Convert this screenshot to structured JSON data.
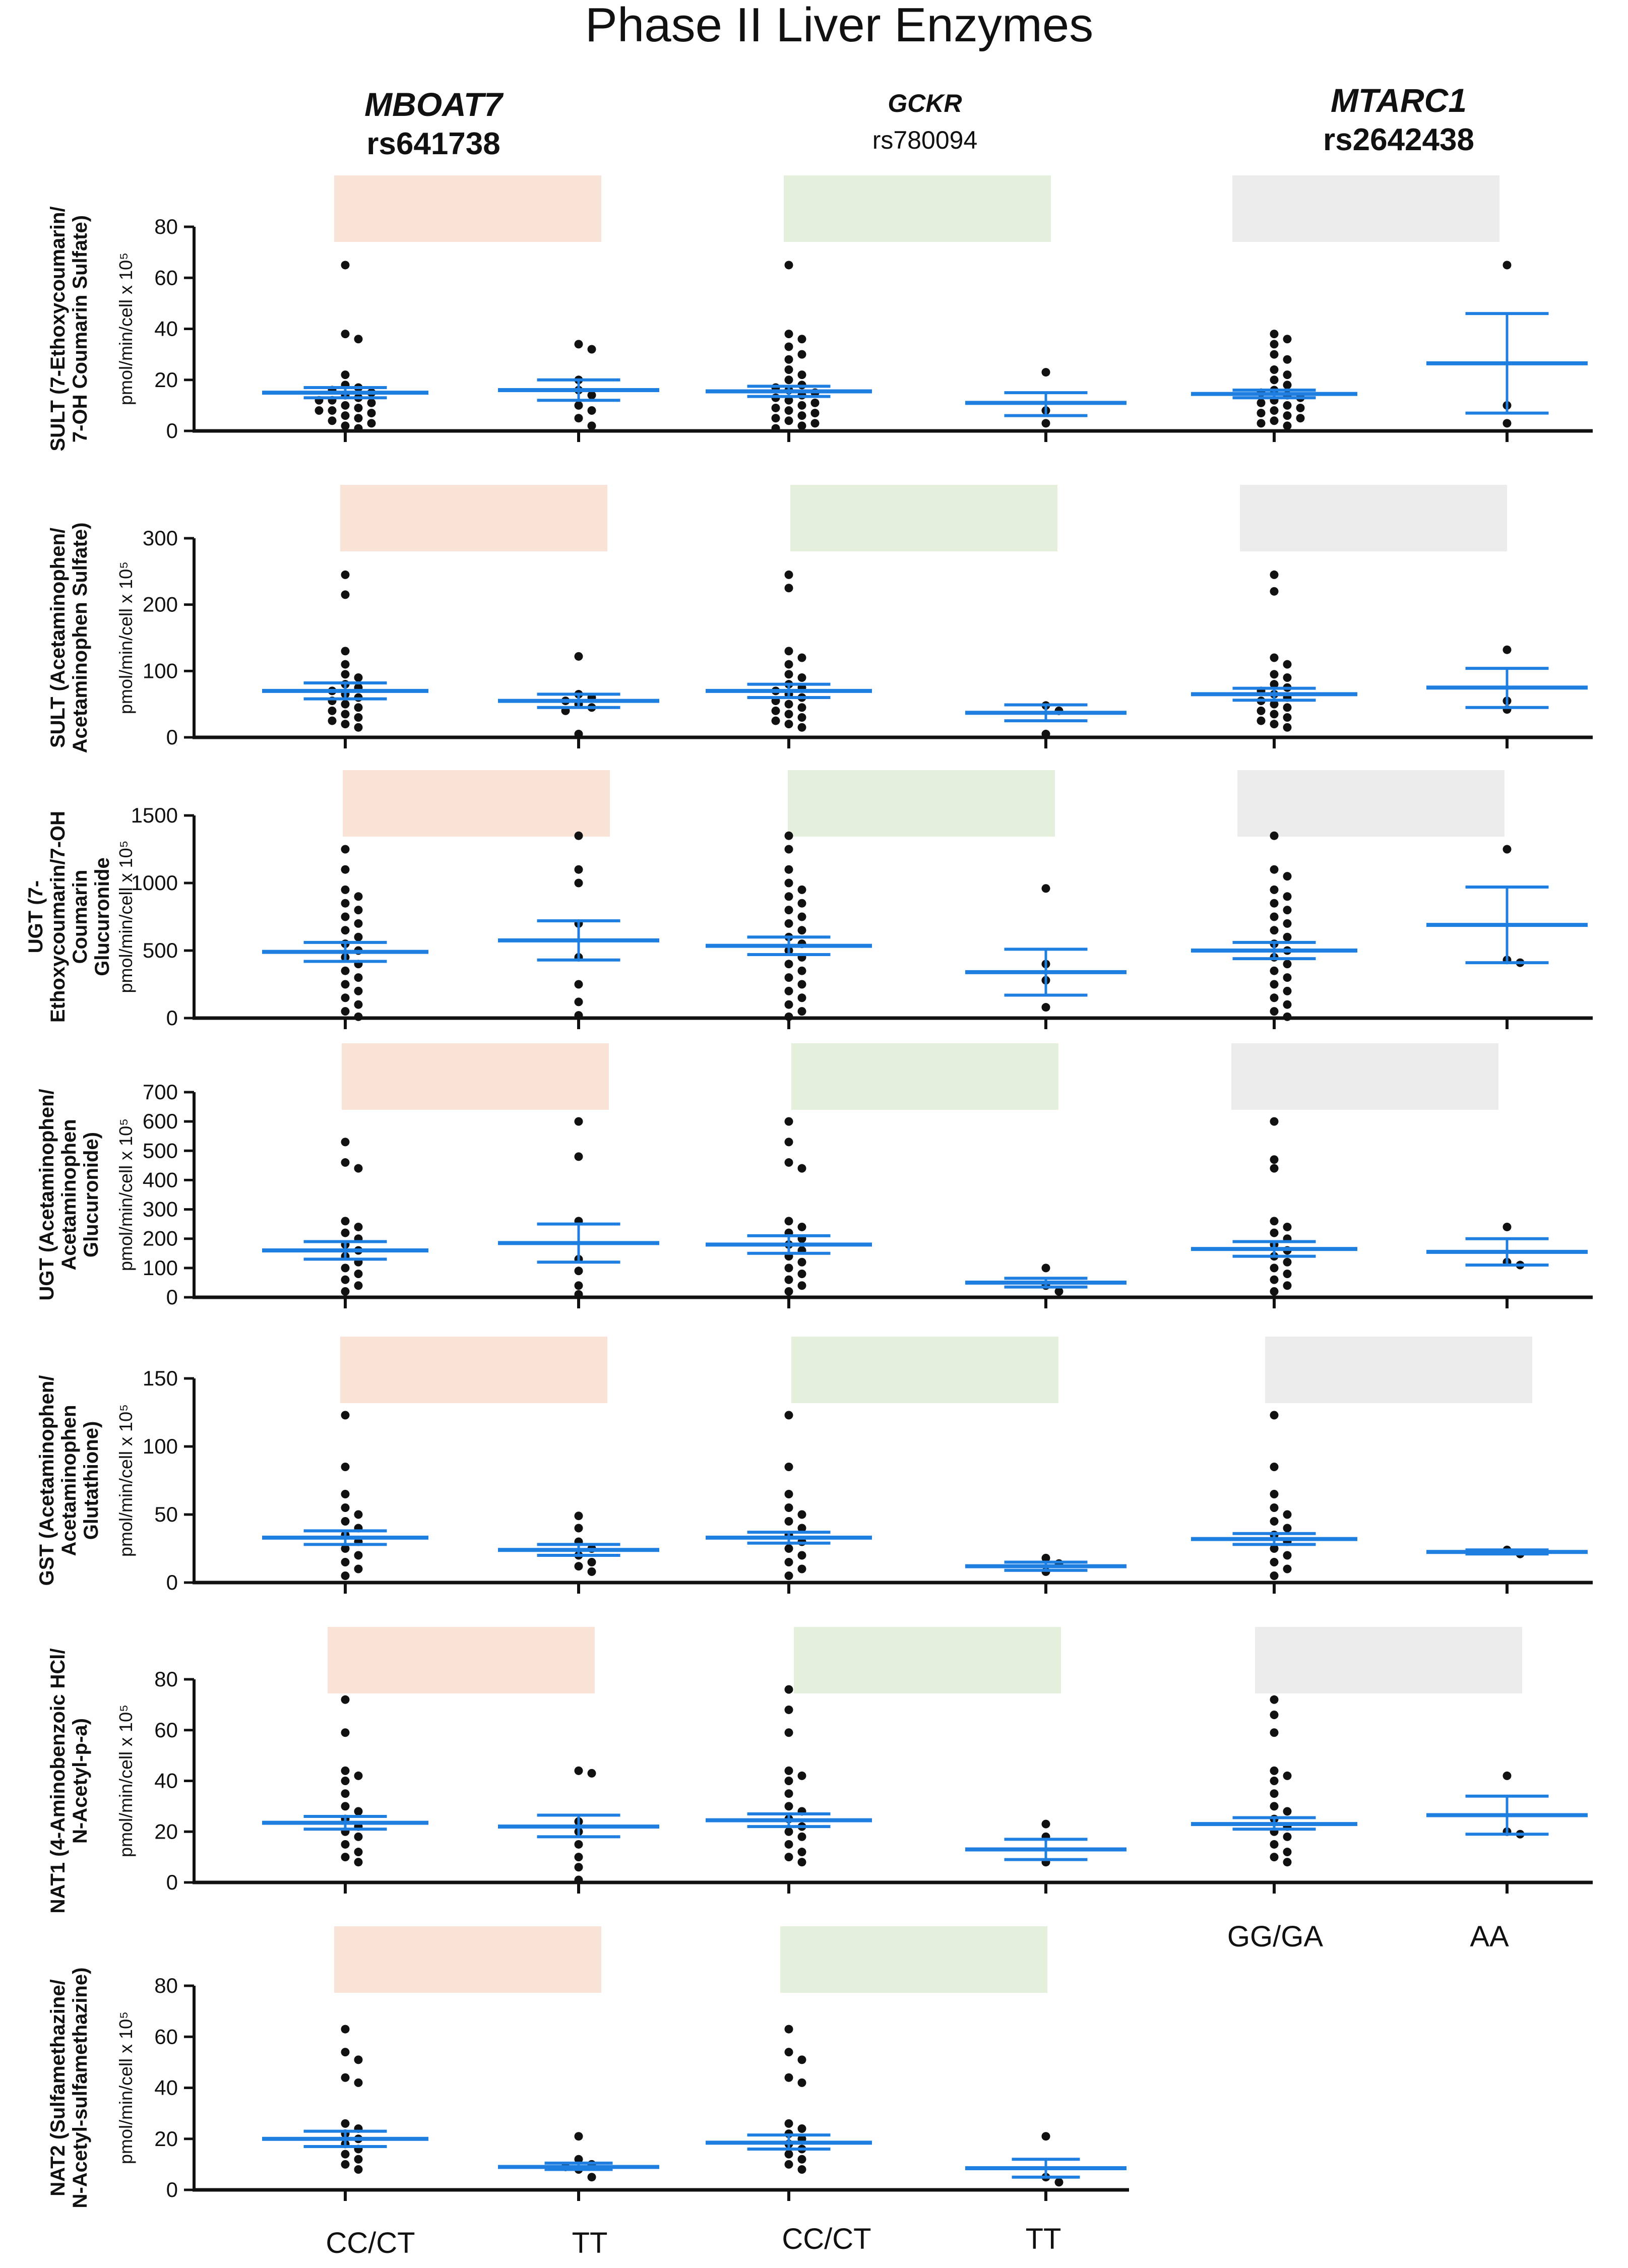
{
  "chart_data": {
    "type": "scatter",
    "title": "Phase II Liver Enzymes",
    "genes": [
      {
        "gene": "MBOAT7",
        "snp": "rs641738",
        "categories": [
          "CC/CT",
          "TT"
        ],
        "color": "#f9e3d6"
      },
      {
        "gene": "GCKR",
        "snp": "rs780094",
        "categories": [
          "CC/CT",
          "TT"
        ],
        "color": "#e5f0dc"
      },
      {
        "gene": "MTARC1",
        "snp": "rs2642438",
        "categories": [
          "GG/GA",
          "AA"
        ],
        "color": "#ececec"
      }
    ],
    "category_labels": {
      "gene1_a": "CC/CT",
      "gene1_b": "TT",
      "gene2_a": "CC/CT",
      "gene2_b": "TT",
      "gene3_a": "GG/GA",
      "gene3_b": "AA"
    },
    "unit": "pmol/min/cell x 10⁵",
    "point_color": "#111111",
    "mean_color": "#1f7fe0",
    "panels": [
      {
        "ylabel": [
          "SULT (7-Ethoxycoumarin/",
          "7-OH Coumarin Sulfate)"
        ],
        "ylim": [
          0,
          80
        ],
        "yticks": [
          0,
          20,
          40,
          60,
          80
        ],
        "groups": [
          {
            "mean": 15,
            "sem": [
              13,
              17
            ],
            "points": [
              65,
              38,
              36,
              22,
              18,
              17,
              16,
              15,
              14,
              13,
              12,
              12,
              11,
              10,
              9,
              8,
              8,
              7,
              6,
              5,
              4,
              3,
              2,
              1
            ]
          },
          {
            "mean": 16,
            "sem": [
              12,
              20
            ],
            "points": [
              34,
              32,
              20,
              16,
              14,
              10,
              8,
              5,
              2
            ]
          },
          {
            "mean": 15.5,
            "sem": [
              13.5,
              17.5
            ],
            "points": [
              65,
              38,
              36,
              33,
              30,
              28,
              24,
              22,
              20,
              18,
              17,
              16,
              15,
              14,
              13,
              12,
              11,
              10,
              9,
              8,
              7,
              6,
              5,
              4,
              3,
              2,
              1
            ]
          },
          {
            "mean": 11,
            "sem": [
              6,
              15
            ],
            "points": [
              23,
              8,
              3
            ]
          },
          {
            "mean": 14.5,
            "sem": [
              13,
              16
            ],
            "points": [
              38,
              36,
              34,
              30,
              28,
              24,
              22,
              20,
              18,
              16,
              15,
              14,
              13,
              12,
              11,
              10,
              9,
              8,
              7,
              6,
              5,
              4,
              3,
              2
            ]
          },
          {
            "mean": 26.5,
            "sem": [
              7,
              46
            ],
            "points": [
              65,
              10,
              3
            ]
          }
        ]
      },
      {
        "ylabel": [
          "SULT (Acetaminophen/",
          "Acetaminophen Sulfate)"
        ],
        "ylim": [
          0,
          300
        ],
        "yticks": [
          0,
          100,
          200,
          300
        ],
        "groups": [
          {
            "mean": 70,
            "sem": [
              58,
              82
            ],
            "points": [
              245,
              215,
              130,
              110,
              95,
              90,
              80,
              75,
              70,
              65,
              60,
              55,
              50,
              45,
              40,
              35,
              30,
              25,
              20,
              15
            ]
          },
          {
            "mean": 55,
            "sem": [
              45,
              65
            ],
            "points": [
              122,
              65,
              60,
              55,
              50,
              45,
              40,
              5
            ]
          },
          {
            "mean": 70,
            "sem": [
              60,
              80
            ],
            "points": [
              245,
              225,
              130,
              120,
              110,
              95,
              90,
              80,
              75,
              70,
              65,
              60,
              55,
              50,
              45,
              40,
              35,
              30,
              25,
              20,
              15
            ]
          },
          {
            "mean": 37,
            "sem": [
              25,
              49
            ],
            "points": [
              48,
              40,
              5
            ]
          },
          {
            "mean": 65,
            "sem": [
              56,
              74
            ],
            "points": [
              245,
              220,
              120,
              110,
              95,
              90,
              80,
              75,
              70,
              65,
              60,
              55,
              50,
              45,
              40,
              35,
              30,
              25,
              20,
              15
            ]
          },
          {
            "mean": 75,
            "sem": [
              45,
              104
            ],
            "points": [
              132,
              55,
              42
            ]
          }
        ]
      },
      {
        "ylabel": [
          "UGT (7-",
          "Ethoxycoumarin/7-OH",
          "Coumarin",
          "Glucuronide"
        ],
        "ylim": [
          0,
          1500
        ],
        "yticks": [
          0,
          500,
          1000,
          1500
        ],
        "groups": [
          {
            "mean": 490,
            "sem": [
              420,
              560
            ],
            "points": [
              1250,
              1100,
              950,
              900,
              850,
              800,
              750,
              700,
              650,
              600,
              550,
              500,
              450,
              400,
              350,
              300,
              250,
              200,
              150,
              100,
              50,
              10
            ]
          },
          {
            "mean": 575,
            "sem": [
              430,
              720
            ],
            "points": [
              1350,
              1100,
              1000,
              700,
              450,
              250,
              120,
              20
            ]
          },
          {
            "mean": 535,
            "sem": [
              470,
              600
            ],
            "points": [
              1350,
              1250,
              1100,
              1000,
              950,
              900,
              850,
              800,
              750,
              700,
              650,
              600,
              550,
              500,
              450,
              400,
              350,
              300,
              250,
              200,
              150,
              100,
              50,
              10
            ]
          },
          {
            "mean": 340,
            "sem": [
              170,
              510
            ],
            "points": [
              960,
              400,
              280,
              80
            ]
          },
          {
            "mean": 500,
            "sem": [
              440,
              560
            ],
            "points": [
              1350,
              1100,
              1050,
              950,
              900,
              850,
              800,
              750,
              700,
              650,
              600,
              550,
              500,
              450,
              400,
              350,
              300,
              250,
              200,
              150,
              100,
              50,
              10
            ]
          },
          {
            "mean": 690,
            "sem": [
              410,
              970
            ],
            "points": [
              1250,
              430,
              410
            ]
          }
        ]
      },
      {
        "ylabel": [
          "UGT (Acetaminophen/",
          "Acetaminophen",
          "Glucuronide)"
        ],
        "ylim": [
          0,
          700
        ],
        "yticks": [
          0,
          100,
          200,
          300,
          400,
          500,
          600,
          700
        ],
        "groups": [
          {
            "mean": 160,
            "sem": [
              130,
              190
            ],
            "points": [
              530,
              460,
              440,
              260,
              240,
              220,
              200,
              180,
              160,
              140,
              120,
              100,
              80,
              60,
              40,
              20
            ]
          },
          {
            "mean": 185,
            "sem": [
              120,
              250
            ],
            "points": [
              600,
              480,
              260,
              130,
              90,
              40,
              10
            ]
          },
          {
            "mean": 180,
            "sem": [
              150,
              210
            ],
            "points": [
              600,
              530,
              460,
              440,
              260,
              240,
              220,
              200,
              180,
              160,
              140,
              120,
              100,
              80,
              60,
              40,
              20
            ]
          },
          {
            "mean": 50,
            "sem": [
              35,
              65
            ],
            "points": [
              100,
              40,
              20
            ]
          },
          {
            "mean": 165,
            "sem": [
              140,
              190
            ],
            "points": [
              600,
              470,
              440,
              260,
              240,
              220,
              200,
              180,
              160,
              140,
              120,
              100,
              80,
              60,
              40,
              20
            ]
          },
          {
            "mean": 155,
            "sem": [
              110,
              200
            ],
            "points": [
              240,
              120,
              110
            ]
          }
        ]
      },
      {
        "ylabel": [
          "GST (Acetaminophen/",
          "Acetaminophen",
          "Glutathione)"
        ],
        "ylim": [
          0,
          150
        ],
        "yticks": [
          0,
          50,
          100,
          150
        ],
        "groups": [
          {
            "mean": 33,
            "sem": [
              28,
              38
            ],
            "points": [
              123,
              85,
              65,
              55,
              50,
              45,
              40,
              35,
              30,
              25,
              20,
              15,
              10,
              5
            ]
          },
          {
            "mean": 24,
            "sem": [
              20,
              28
            ],
            "points": [
              49,
              40,
              30,
              25,
              20,
              15,
              12,
              8
            ]
          },
          {
            "mean": 33,
            "sem": [
              29,
              37
            ],
            "points": [
              123,
              85,
              65,
              55,
              50,
              45,
              40,
              35,
              30,
              25,
              20,
              15,
              10,
              5
            ]
          },
          {
            "mean": 12,
            "sem": [
              9,
              15
            ],
            "points": [
              18,
              14,
              8
            ]
          },
          {
            "mean": 32,
            "sem": [
              28,
              36
            ],
            "points": [
              123,
              85,
              65,
              55,
              50,
              45,
              40,
              35,
              30,
              25,
              20,
              15,
              10,
              5
            ]
          },
          {
            "mean": 22.5,
            "sem": [
              21,
              24
            ],
            "points": [
              24,
              21
            ]
          }
        ]
      },
      {
        "ylabel": [
          "NAT1 (4-Aminobenzoic HCl/",
          "N-Acetyl-p-a)"
        ],
        "ylim": [
          0,
          80
        ],
        "yticks": [
          0,
          20,
          40,
          60,
          80
        ],
        "groups": [
          {
            "mean": 23.5,
            "sem": [
              21,
              26
            ],
            "points": [
              72,
              59,
              44,
              42,
              40,
              35,
              30,
              28,
              25,
              22,
              20,
              18,
              15,
              12,
              10,
              8
            ]
          },
          {
            "mean": 22,
            "sem": [
              18,
              26.5
            ],
            "points": [
              44,
              43,
              24,
              20,
              15,
              10,
              6,
              1
            ]
          },
          {
            "mean": 24.5,
            "sem": [
              22,
              27
            ],
            "points": [
              76,
              68,
              59,
              44,
              42,
              40,
              35,
              30,
              28,
              25,
              22,
              20,
              18,
              15,
              12,
              10,
              8
            ]
          },
          {
            "mean": 13,
            "sem": [
              9,
              17
            ],
            "points": [
              23,
              18,
              8
            ]
          },
          {
            "mean": 23,
            "sem": [
              21,
              25.5
            ],
            "points": [
              72,
              66,
              59,
              44,
              42,
              40,
              35,
              30,
              28,
              25,
              22,
              20,
              18,
              15,
              12,
              10,
              8
            ]
          },
          {
            "mean": 26.5,
            "sem": [
              19,
              34
            ],
            "points": [
              42,
              20,
              19
            ]
          }
        ]
      },
      {
        "ylabel": [
          "NAT2 (Sulfamethazine/",
          "N-Acetyl-sulfamethazine)"
        ],
        "ylim": [
          0,
          80
        ],
        "yticks": [
          0,
          20,
          40,
          60,
          80
        ],
        "groups": [
          {
            "mean": 20,
            "sem": [
              17,
              23
            ],
            "points": [
              63,
              54,
              51,
              44,
              42,
              26,
              24,
              22,
              20,
              18,
              16,
              14,
              12,
              10,
              8
            ]
          },
          {
            "mean": 9,
            "sem": [
              8,
              10.5
            ],
            "points": [
              21,
              12,
              10,
              9,
              8,
              5
            ]
          },
          {
            "mean": 18.5,
            "sem": [
              16,
              21.5
            ],
            "points": [
              63,
              54,
              51,
              44,
              42,
              26,
              24,
              22,
              20,
              18,
              16,
              14,
              12,
              10,
              8
            ]
          },
          {
            "mean": 8.5,
            "sem": [
              5,
              12
            ],
            "points": [
              21,
              5,
              3
            ]
          }
        ]
      }
    ]
  }
}
